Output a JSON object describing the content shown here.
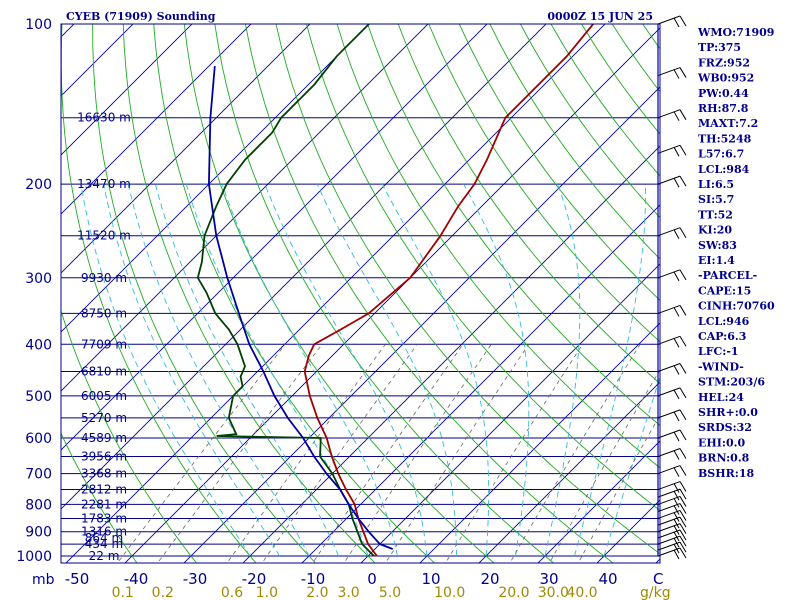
{
  "chart_data": {
    "type": "line",
    "title": "CYEB (71909) Sounding",
    "valid_time": "0000Z 15 JUN 25",
    "pressure_ticks": [
      "100",
      "200",
      "300",
      "400",
      "500",
      "600",
      "700",
      "800",
      "900",
      "1000"
    ],
    "pressure_unit": "mb",
    "temperature_ticks": [
      "-50",
      "-40",
      "-30",
      "-20",
      "-10",
      "0",
      "10",
      "20",
      "30",
      "40"
    ],
    "temperature_unit": "C",
    "mixing_ratio_ticks": [
      "0.1",
      "0.2",
      "0.6",
      "1.0",
      "2.0",
      "3.0",
      "5.0",
      "10.0",
      "20.0",
      "30.0",
      "40.0"
    ],
    "mixing_ratio_unit": "g/kg",
    "height_levels": [
      {
        "p": 1000,
        "label": "22 m"
      },
      {
        "p": 950,
        "label": "434 m"
      },
      {
        "p": 925,
        "label": "864 m"
      },
      {
        "p": 900,
        "label": "1316 m"
      },
      {
        "p": 850,
        "label": "1783 m"
      },
      {
        "p": 800,
        "label": "2281 m"
      },
      {
        "p": 750,
        "label": "2812 m"
      },
      {
        "p": 700,
        "label": "3368 m"
      },
      {
        "p": 650,
        "label": "3956 m"
      },
      {
        "p": 600,
        "label": "4589 m"
      },
      {
        "p": 550,
        "label": "5270 m"
      },
      {
        "p": 500,
        "label": "6005 m"
      },
      {
        "p": 450,
        "label": "6810 m"
      },
      {
        "p": 400,
        "label": "7709 m"
      },
      {
        "p": 350,
        "label": "8750 m"
      },
      {
        "p": 300,
        "label": "9930 m"
      },
      {
        "p": 250,
        "label": "11520 m"
      },
      {
        "p": 200,
        "label": "13470 m"
      },
      {
        "p": 150,
        "label": "16630 m"
      }
    ],
    "series": [
      {
        "color": "#a00000",
        "points": [
          {
            "p": 1000,
            "t": 1.5
          },
          {
            "p": 950,
            "t": -2
          },
          {
            "p": 850,
            "t": -8
          },
          {
            "p": 800,
            "t": -11
          },
          {
            "p": 750,
            "t": -15
          },
          {
            "p": 700,
            "t": -19
          },
          {
            "p": 650,
            "t": -23
          },
          {
            "p": 600,
            "t": -27
          },
          {
            "p": 550,
            "t": -32
          },
          {
            "p": 500,
            "t": -37
          },
          {
            "p": 450,
            "t": -42
          },
          {
            "p": 420,
            "t": -44
          },
          {
            "p": 400,
            "t": -45
          },
          {
            "p": 375,
            "t": -43
          },
          {
            "p": 350,
            "t": -41
          },
          {
            "p": 300,
            "t": -40
          },
          {
            "p": 250,
            "t": -42
          },
          {
            "p": 220,
            "t": -44
          },
          {
            "p": 200,
            "t": -45
          },
          {
            "p": 180,
            "t": -47
          },
          {
            "p": 150,
            "t": -51
          },
          {
            "p": 130,
            "t": -51
          },
          {
            "p": 115,
            "t": -51
          },
          {
            "p": 100,
            "t": -52
          }
        ]
      },
      {
        "color": "#004000",
        "points": [
          {
            "p": 1000,
            "t": 1
          },
          {
            "p": 950,
            "t": -3
          },
          {
            "p": 850,
            "t": -9
          },
          {
            "p": 800,
            "t": -12
          },
          {
            "p": 750,
            "t": -16
          },
          {
            "p": 700,
            "t": -20
          },
          {
            "p": 650,
            "t": -25
          },
          {
            "p": 600,
            "t": -28
          },
          {
            "p": 595,
            "t": -46
          },
          {
            "p": 590,
            "t": -43
          },
          {
            "p": 550,
            "t": -47
          },
          {
            "p": 500,
            "t": -50
          },
          {
            "p": 480,
            "t": -50
          },
          {
            "p": 460,
            "t": -52
          },
          {
            "p": 440,
            "t": -53
          },
          {
            "p": 400,
            "t": -58
          },
          {
            "p": 375,
            "t": -62
          },
          {
            "p": 350,
            "t": -67
          },
          {
            "p": 320,
            "t": -72
          },
          {
            "p": 300,
            "t": -76
          },
          {
            "p": 280,
            "t": -78
          },
          {
            "p": 250,
            "t": -82
          },
          {
            "p": 220,
            "t": -85
          },
          {
            "p": 200,
            "t": -87
          },
          {
            "p": 180,
            "t": -88
          },
          {
            "p": 160,
            "t": -88
          },
          {
            "p": 150,
            "t": -89
          },
          {
            "p": 130,
            "t": -89
          },
          {
            "p": 115,
            "t": -90
          },
          {
            "p": 100,
            "t": -90
          }
        ]
      },
      {
        "color": "#0000a0",
        "points": [
          {
            "p": 970,
            "t": 3
          },
          {
            "p": 950,
            "t": 0
          },
          {
            "p": 900,
            "t": -4
          },
          {
            "p": 850,
            "t": -8
          },
          {
            "p": 800,
            "t": -12
          },
          {
            "p": 750,
            "t": -16
          },
          {
            "p": 700,
            "t": -21
          },
          {
            "p": 650,
            "t": -26
          },
          {
            "p": 600,
            "t": -31
          },
          {
            "p": 550,
            "t": -37
          },
          {
            "p": 500,
            "t": -43
          },
          {
            "p": 450,
            "t": -49
          },
          {
            "p": 400,
            "t": -56
          },
          {
            "p": 350,
            "t": -63
          },
          {
            "p": 300,
            "t": -71
          },
          {
            "p": 250,
            "t": -80
          },
          {
            "p": 200,
            "t": -90
          },
          {
            "p": 150,
            "t": -101
          },
          {
            "p": 120,
            "t": -109
          }
        ]
      }
    ],
    "indices": [
      "WMO:71909",
      "TP:375",
      "FRZ:952",
      "WB0:952",
      "PW:0.44",
      "RH:87.8",
      "MAXT:7.2",
      "TH:5248",
      "L57:6.7",
      "LCL:984",
      "LI:6.5",
      "SI:5.7",
      "TT:52",
      "KI:20",
      "SW:83",
      "EI:1.4",
      "-PARCEL-",
      "CAPE:15",
      "CINH:70760",
      "LCL:946",
      "CAP:6.3",
      "LFC:-1",
      "-WIND-",
      "STM:203/6",
      "HEL:24",
      "SHR+:0.0",
      "SRDS:32",
      "EHI:0.0",
      "BRN:0.8",
      "BSHR:18"
    ],
    "colors": {
      "frame": "#00008b",
      "isobar": "#00008b",
      "isotherm": "#0000a0",
      "dry_adiabat": "#22aa22",
      "moist_adiabat": "#33bbdd",
      "mixing_ratio": "#666666",
      "mixing_ratio_labels": "#a08b00",
      "background": "#ffffff"
    }
  }
}
